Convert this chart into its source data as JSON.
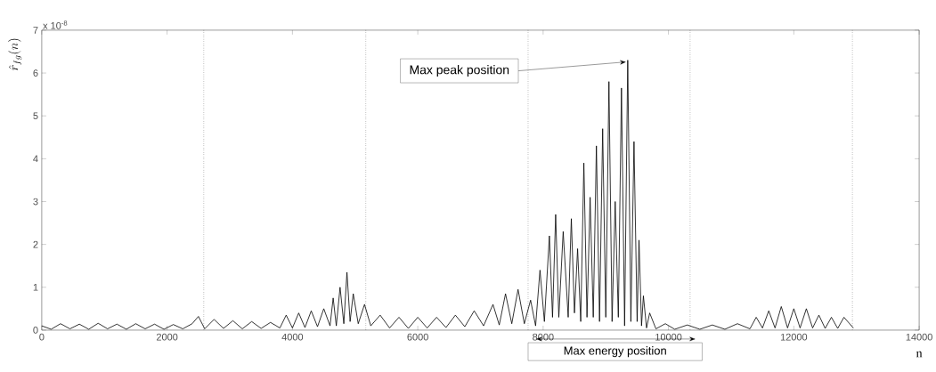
{
  "chart_data": {
    "type": "line",
    "ylabel": "\\hat{r}_{fg}(n)",
    "xlabel": "n",
    "x": [
      0,
      150,
      300,
      450,
      600,
      750,
      900,
      1050,
      1200,
      1350,
      1500,
      1650,
      1800,
      1950,
      2100,
      2250,
      2400,
      2500,
      2600,
      2750,
      2900,
      3050,
      3200,
      3350,
      3500,
      3650,
      3800,
      3900,
      4000,
      4100,
      4200,
      4300,
      4400,
      4500,
      4600,
      4650,
      4700,
      4760,
      4820,
      4870,
      4920,
      4970,
      5050,
      5150,
      5250,
      5400,
      5550,
      5700,
      5850,
      6000,
      6150,
      6300,
      6450,
      6600,
      6750,
      6900,
      7050,
      7200,
      7300,
      7400,
      7500,
      7600,
      7700,
      7800,
      7880,
      7950,
      8020,
      8100,
      8150,
      8200,
      8250,
      8320,
      8400,
      8450,
      8500,
      8550,
      8600,
      8650,
      8700,
      8750,
      8800,
      8850,
      8900,
      8950,
      9000,
      9050,
      9100,
      9150,
      9200,
      9250,
      9300,
      9350,
      9400,
      9450,
      9500,
      9530,
      9570,
      9600,
      9650,
      9700,
      9800,
      9950,
      10100,
      10300,
      10500,
      10700,
      10900,
      11100,
      11300,
      11400,
      11500,
      11600,
      11700,
      11800,
      11900,
      12000,
      12100,
      12200,
      12300,
      12400,
      12500,
      12600,
      12700,
      12800,
      12950
    ],
    "series": [
      {
        "color": "#000000",
        "values": [
          0.1,
          0.02,
          0.15,
          0.03,
          0.14,
          0.02,
          0.16,
          0.03,
          0.14,
          0.02,
          0.15,
          0.03,
          0.14,
          0.02,
          0.13,
          0.03,
          0.15,
          0.32,
          0.03,
          0.25,
          0.04,
          0.22,
          0.03,
          0.2,
          0.04,
          0.18,
          0.05,
          0.35,
          0.05,
          0.4,
          0.06,
          0.45,
          0.08,
          0.5,
          0.1,
          0.75,
          0.1,
          1.0,
          0.15,
          1.35,
          0.2,
          0.85,
          0.15,
          0.6,
          0.1,
          0.35,
          0.05,
          0.3,
          0.04,
          0.3,
          0.05,
          0.3,
          0.06,
          0.35,
          0.08,
          0.45,
          0.1,
          0.6,
          0.12,
          0.85,
          0.15,
          0.95,
          0.15,
          0.7,
          0.1,
          1.4,
          0.2,
          2.2,
          0.3,
          2.7,
          0.3,
          2.3,
          0.3,
          2.6,
          0.4,
          1.9,
          0.2,
          3.9,
          0.3,
          3.1,
          0.3,
          4.3,
          0.2,
          4.7,
          0.3,
          5.8,
          0.2,
          3.0,
          0.3,
          5.65,
          0.1,
          6.3,
          0.2,
          4.4,
          0.2,
          2.1,
          0.1,
          0.8,
          0.05,
          0.4,
          0.03,
          0.15,
          0.02,
          0.12,
          0.02,
          0.12,
          0.02,
          0.15,
          0.03,
          0.3,
          0.05,
          0.45,
          0.05,
          0.55,
          0.05,
          0.5,
          0.05,
          0.5,
          0.05,
          0.35,
          0.04,
          0.3,
          0.04,
          0.3,
          0.05
        ]
      }
    ],
    "xlim": [
      0,
      14000
    ],
    "ylim": [
      0,
      7
    ],
    "xticks": [
      0,
      2000,
      4000,
      6000,
      8000,
      10000,
      12000,
      14000
    ],
    "yticks": [
      0,
      1,
      2,
      3,
      4,
      5,
      6,
      7
    ],
    "grid": false,
    "marker": "none",
    "line_style": "solid",
    "ref_lines": [
      {
        "axis": "x",
        "value": 2585,
        "color": "#000000",
        "line_style": "dotted"
      },
      {
        "axis": "x",
        "value": 5170,
        "color": "#000000",
        "line_style": "dotted"
      },
      {
        "axis": "x",
        "value": 7760,
        "color": "#000000",
        "line_style": "dotted"
      },
      {
        "axis": "x",
        "value": 10345,
        "color": "#000000",
        "line_style": "dotted"
      },
      {
        "axis": "x",
        "value": 12935,
        "color": "#000000",
        "line_style": "dotted"
      }
    ],
    "annotations": [
      "x 10$^{-8}$",
      {
        "text": "Max peak position",
        "x": 9350,
        "y": 6.3
      },
      "Max energy position"
    ]
  }
}
